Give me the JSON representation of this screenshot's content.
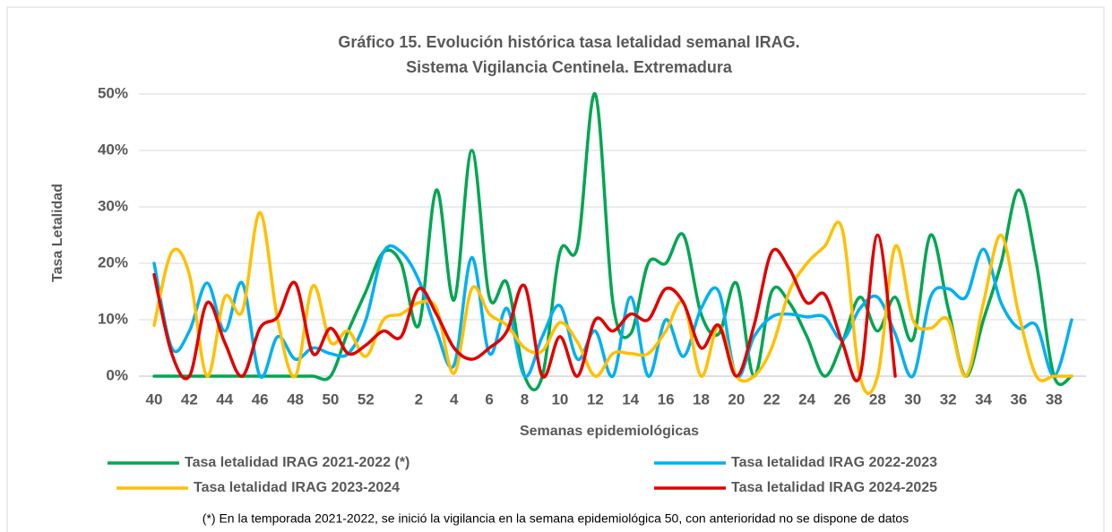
{
  "chart_data": {
    "type": "line",
    "title": "Gráfico 15. Evolución histórica tasa letalidad semanal IRAG.",
    "subtitle": "Sistema  Vigilancia Centinela. Extremadura",
    "y_label": "Tasa Letalidad",
    "x_label": "Semanas epidemiológicas",
    "note": "(*) En la temporada 2021-2022, se inició la vigilancia en la semana epidemiológica 50, con anterioridad no se dispone de datos",
    "categories": [
      "40",
      null,
      "42",
      null,
      "44",
      null,
      "46",
      null,
      "48",
      null,
      "50",
      null,
      "52",
      null,
      null,
      "2",
      null,
      "4",
      null,
      "6",
      null,
      "8",
      null,
      "10",
      null,
      "12",
      null,
      "14",
      null,
      "16",
      null,
      "18",
      null,
      "20",
      null,
      "22",
      null,
      "24",
      null,
      "26",
      null,
      "28",
      null,
      "30",
      null,
      "32",
      null,
      "34",
      null,
      "36",
      null,
      "38",
      null
    ],
    "ylim": [
      0,
      50
    ],
    "yticks": [
      {
        "value": 0,
        "label": "0%"
      },
      {
        "value": 10,
        "label": "10%"
      },
      {
        "value": 20,
        "label": "20%"
      },
      {
        "value": 30,
        "label": "30%"
      },
      {
        "value": 40,
        "label": "40%"
      },
      {
        "value": 50,
        "label": "50%"
      }
    ],
    "grid": true,
    "legend": "bottom",
    "series": [
      {
        "name": "Tasa letalidad IRAG 2021-2022 (*)",
        "color": "#00a651",
        "values": [
          0,
          0,
          0,
          0,
          0,
          0,
          0,
          0,
          0,
          0,
          0,
          8,
          15,
          22,
          20,
          9,
          33,
          13.5,
          40,
          14,
          16.5,
          0,
          0,
          22,
          23,
          50,
          13,
          7.5,
          20,
          20,
          25,
          11,
          7.5,
          16.5,
          0,
          15,
          13,
          7,
          0,
          6,
          14,
          8,
          14,
          6.5,
          25,
          12,
          0,
          10,
          20,
          33,
          20,
          0,
          0
        ]
      },
      {
        "name": "Tasa letalidad IRAG 2022-2023",
        "color": "#00b0f0",
        "values": [
          20,
          5,
          8,
          16.5,
          8,
          16.5,
          0,
          7,
          3,
          5,
          4,
          4,
          10,
          22,
          22,
          17,
          8,
          2,
          21,
          4,
          12,
          0,
          7,
          12.5,
          3,
          8,
          0,
          14,
          0,
          10,
          3.5,
          12,
          15,
          0,
          7,
          10.5,
          11,
          10.5,
          10.5,
          6.5,
          12,
          14,
          7.5,
          0,
          14,
          15.5,
          14,
          22.5,
          13,
          8.5,
          9,
          0,
          10
        ]
      },
      {
        "name": "Tasa letalidad IRAG 2023-2024",
        "color": "#ffc000",
        "values": [
          9,
          22,
          18,
          0,
          14,
          11.5,
          29,
          10,
          0,
          16,
          6,
          8,
          3.5,
          10,
          11,
          13,
          12,
          0.5,
          15.5,
          11,
          9,
          5,
          4.5,
          9.5,
          6,
          0,
          4,
          4,
          4,
          8,
          13,
          0,
          9,
          0,
          0,
          5,
          15,
          20,
          23,
          26,
          0,
          0,
          23,
          10,
          8.5,
          10,
          0,
          13,
          25,
          11,
          0,
          0,
          0
        ]
      },
      {
        "name": "Tasa letalidad IRAG 2024-2025",
        "color": "#e00000",
        "values": [
          18,
          4,
          0,
          13,
          6,
          0,
          8.5,
          10.5,
          16.5,
          4,
          8.5,
          4,
          5.5,
          8,
          7,
          15.5,
          11,
          5,
          3,
          5,
          8,
          16,
          0,
          7,
          0,
          10,
          8,
          11,
          10,
          15.5,
          13,
          5,
          9,
          0,
          9,
          22,
          19,
          13,
          14.5,
          6,
          0,
          25,
          0,
          null,
          null,
          null,
          null,
          null,
          null,
          null,
          null,
          null,
          null
        ]
      }
    ]
  }
}
